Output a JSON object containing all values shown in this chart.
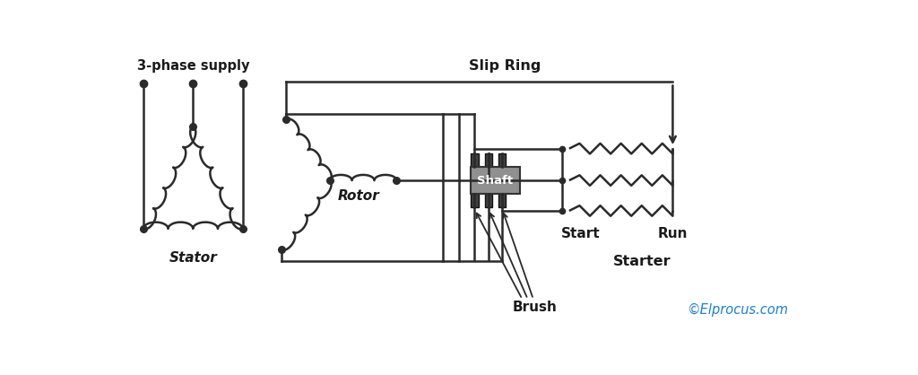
{
  "bg_color": "#ffffff",
  "line_color": "#2a2a2a",
  "text_color": "#1a1a1a",
  "shaft_color": "#909090",
  "brush_color": "#404040",
  "copyright_color": "#1a7fd4",
  "labels": {
    "supply": "3-phase supply",
    "stator": "Stator",
    "rotor": "Rotor",
    "slip_ring": "Slip Ring",
    "shaft": "Shaft",
    "brush": "Brush",
    "start": "Start",
    "run": "Run",
    "starter": "Starter",
    "copyright": "©Elprocus.com"
  },
  "figsize": [
    10.24,
    4.18
  ],
  "dpi": 100
}
